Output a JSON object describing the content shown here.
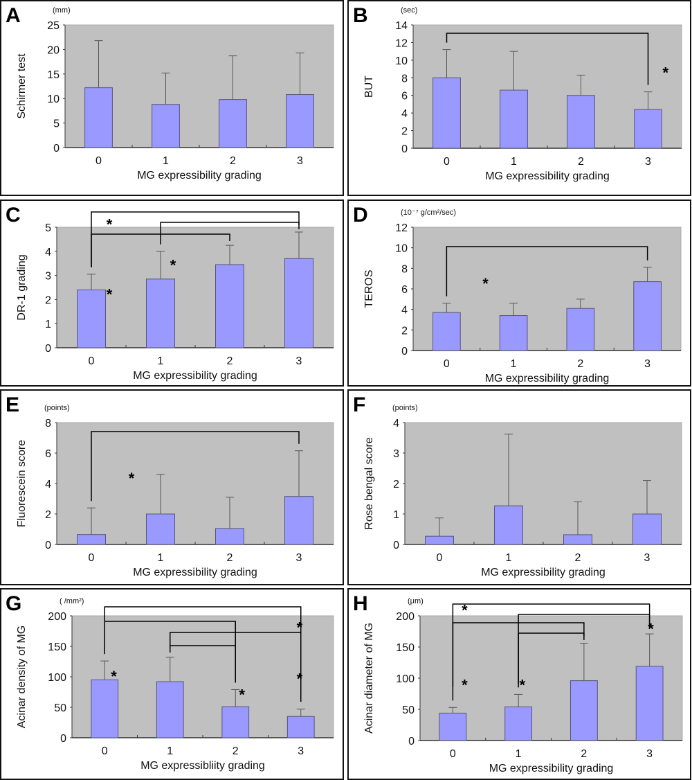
{
  "chart_data": [
    {
      "panel": "A",
      "type": "bar",
      "unit": "(mm)",
      "title": "",
      "xlabel": "MG expressibility grading",
      "ylabel": "Schirmer test",
      "categories": [
        "0",
        "1",
        "2",
        "3"
      ],
      "values": [
        12.2,
        8.8,
        9.8,
        10.8
      ],
      "errors": [
        9.6,
        6.4,
        8.9,
        8.5
      ],
      "ylim": [
        0,
        25
      ],
      "yticks": [
        "0",
        "5",
        "10",
        "15",
        "20",
        "25"
      ],
      "significance": [],
      "colors": {
        "bar": "#9999ff",
        "plot_bg": "#c0c0c0"
      }
    },
    {
      "panel": "B",
      "type": "bar",
      "unit": "(sec)",
      "title": "",
      "xlabel": "MG expressibility grading",
      "ylabel": "BUT",
      "categories": [
        "0",
        "1",
        "2",
        "3"
      ],
      "values": [
        8.0,
        6.6,
        6.0,
        4.4
      ],
      "errors": [
        3.2,
        4.4,
        2.3,
        2.0
      ],
      "ylim": [
        0,
        14
      ],
      "yticks": [
        "0",
        "2",
        "4",
        "6",
        "8",
        "10",
        "12",
        "14"
      ],
      "significance": [
        {
          "from": 0,
          "to": 3,
          "label": "*"
        }
      ],
      "colors": {
        "bar": "#9999ff",
        "plot_bg": "#c0c0c0"
      }
    },
    {
      "panel": "C",
      "type": "bar",
      "unit": "",
      "title": "",
      "xlabel": "MG expressibility grading",
      "ylabel": "DR-1 grading",
      "categories": [
        "0",
        "1",
        "2",
        "3"
      ],
      "values": [
        2.4,
        2.85,
        3.45,
        3.7
      ],
      "errors": [
        0.65,
        1.15,
        0.8,
        1.1
      ],
      "ylim": [
        0,
        5
      ],
      "yticks": [
        "0",
        "1",
        "2",
        "3",
        "4",
        "5"
      ],
      "significance": [
        {
          "from": 0,
          "to": 3,
          "label": "*"
        },
        {
          "from": 1,
          "to": 3,
          "label": "*"
        },
        {
          "from": 0,
          "to": 2,
          "label": "*"
        }
      ],
      "colors": {
        "bar": "#9999ff",
        "plot_bg": "#c0c0c0"
      }
    },
    {
      "panel": "D",
      "type": "bar",
      "unit": "(10⁻⁷ g/cm²/sec)",
      "title": "",
      "xlabel": "MG expressibility grading",
      "ylabel": "TEROS",
      "categories": [
        "0",
        "1",
        "2",
        "3"
      ],
      "values": [
        3.7,
        3.4,
        4.1,
        6.7
      ],
      "errors": [
        0.9,
        1.2,
        0.9,
        1.4
      ],
      "ylim": [
        0,
        12
      ],
      "yticks": [
        "0",
        "2",
        "4",
        "6",
        "8",
        "10",
        "12"
      ],
      "significance": [
        {
          "from": 0,
          "to": 3,
          "label": "*"
        }
      ],
      "colors": {
        "bar": "#9999ff",
        "plot_bg": "#c0c0c0"
      }
    },
    {
      "panel": "E",
      "type": "bar",
      "unit": "(points)",
      "title": "",
      "xlabel": "MG expressibility grading",
      "ylabel": "Fluorescein score",
      "categories": [
        "0",
        "1",
        "2",
        "3"
      ],
      "values": [
        0.65,
        2.0,
        1.05,
        3.15
      ],
      "errors": [
        1.75,
        2.6,
        2.05,
        3.0
      ],
      "ylim": [
        0,
        8
      ],
      "yticks": [
        "0",
        "2",
        "4",
        "6",
        "8"
      ],
      "significance": [
        {
          "from": 0,
          "to": 3,
          "label": "*"
        }
      ],
      "colors": {
        "bar": "#9999ff",
        "plot_bg": "#c0c0c0"
      }
    },
    {
      "panel": "F",
      "type": "bar",
      "unit": "(points)",
      "title": "",
      "xlabel": "MG expressibility grading",
      "ylabel": "Rose bengal score",
      "categories": [
        "0",
        "1",
        "2",
        "3"
      ],
      "values": [
        0.27,
        1.27,
        0.32,
        1.0
      ],
      "errors": [
        0.6,
        2.35,
        1.08,
        1.1
      ],
      "ylim": [
        0,
        4
      ],
      "yticks": [
        "0",
        "1",
        "2",
        "3",
        "4"
      ],
      "significance": [],
      "colors": {
        "bar": "#9999ff",
        "plot_bg": "#c0c0c0"
      }
    },
    {
      "panel": "G",
      "type": "bar",
      "unit": "( /mm²)",
      "title": "",
      "xlabel": "MG expressibliity grading",
      "ylabel": "Acinar density of MG",
      "categories": [
        "0",
        "1",
        "2",
        "3"
      ],
      "values": [
        95,
        92,
        51,
        35
      ],
      "errors": [
        31,
        40,
        28,
        12
      ],
      "ylim": [
        0,
        200
      ],
      "yticks": [
        "0",
        "50",
        "100",
        "150",
        "200"
      ],
      "significance": [
        {
          "from": 0,
          "to": 3,
          "label": "*"
        },
        {
          "from": 0,
          "to": 2,
          "label": "*"
        },
        {
          "from": 1,
          "to": 3,
          "label": "*"
        },
        {
          "from": 1,
          "to": 2,
          "label": "*"
        }
      ],
      "colors": {
        "bar": "#9999ff",
        "plot_bg": "#c0c0c0"
      }
    },
    {
      "panel": "H",
      "type": "bar",
      "unit": "(μm)",
      "title": "",
      "xlabel": "MG expressibility grading",
      "ylabel": "Acinar diameter of MG",
      "categories": [
        "0",
        "1",
        "2",
        "3"
      ],
      "values": [
        44,
        54,
        96,
        119
      ],
      "errors": [
        9,
        20,
        60,
        52
      ],
      "ylim": [
        0,
        200
      ],
      "yticks": [
        "0",
        "50",
        "100",
        "150",
        "200"
      ],
      "significance": [
        {
          "from": 0,
          "to": 3,
          "label": "*"
        },
        {
          "from": 1,
          "to": 3,
          "label": "*"
        },
        {
          "from": 0,
          "to": 2,
          "label": "*"
        },
        {
          "from": 1,
          "to": 2,
          "label": "*"
        }
      ],
      "colors": {
        "bar": "#9999ff",
        "plot_bg": "#c0c0c0"
      }
    }
  ]
}
